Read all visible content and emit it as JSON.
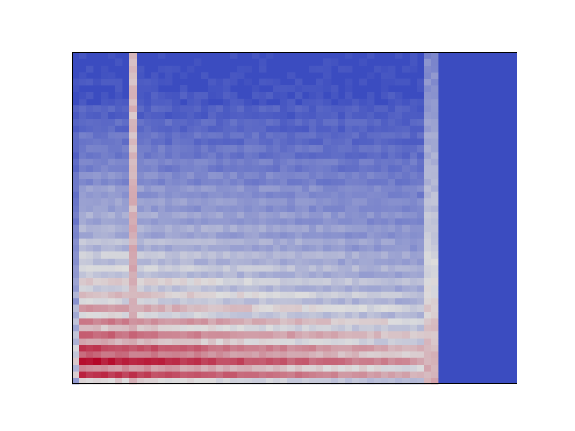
{
  "chart_data": {
    "type": "heatmap",
    "title": "",
    "xlabel": "",
    "ylabel": "",
    "colormap": "coolwarm",
    "axes_visible": false,
    "grid": false,
    "legend": "none",
    "colors": {
      "low": "#3b4cc0",
      "mid": "#dddddd",
      "high": "#b40426",
      "frame": "#000000"
    },
    "time_extent_fraction": 0.825,
    "onset_column_fraction": 0.13,
    "rows_low_to_high": [
      0.55,
      0.92,
      0.7,
      0.99,
      0.78,
      0.88,
      0.62,
      0.8,
      0.58,
      0.74,
      0.52,
      0.66,
      0.48,
      0.6,
      0.45,
      0.56,
      0.42,
      0.5,
      0.4,
      0.46,
      0.36,
      0.42,
      0.33,
      0.38,
      0.3,
      0.35,
      0.28,
      0.32,
      0.26,
      0.3,
      0.22,
      0.25,
      0.19,
      0.22,
      0.16,
      0.18,
      0.13,
      0.15,
      0.1,
      0.12,
      0.07,
      0.09,
      0.04,
      0.05,
      0.02,
      0.03,
      0.01,
      0.01,
      0.0,
      0.0
    ]
  }
}
